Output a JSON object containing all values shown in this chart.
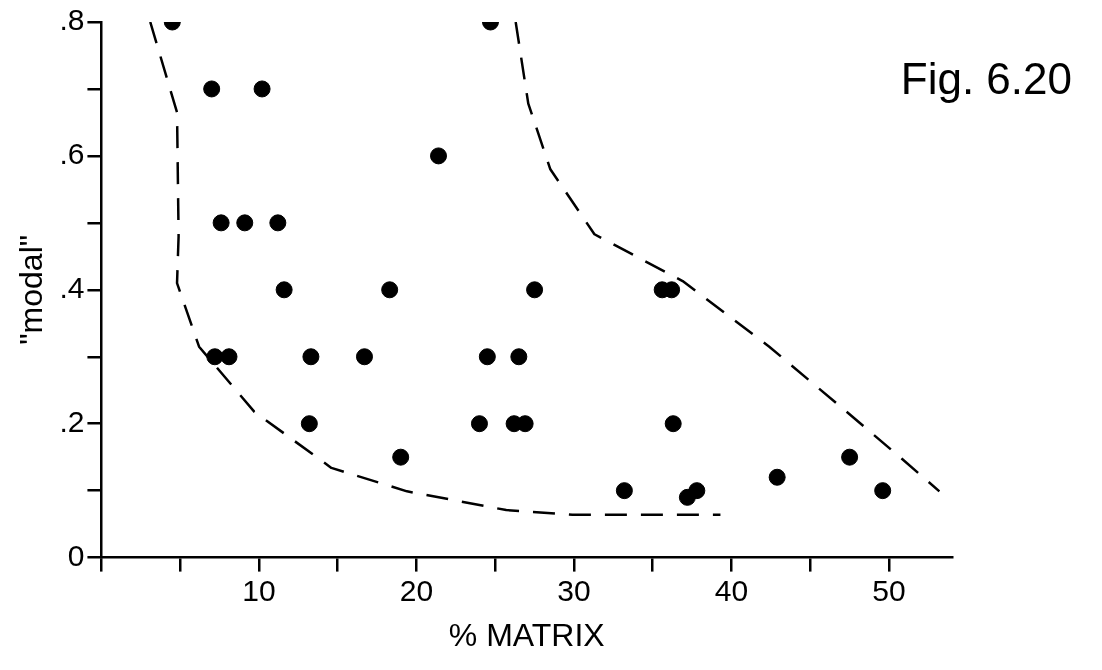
{
  "chart_data": {
    "type": "scatter",
    "xlabel": "% MATRIX",
    "ylabel": "\"modal\"",
    "annotations": [
      "Fig. 6.20"
    ],
    "xlim": [
      0,
      54
    ],
    "ylim": [
      0,
      0.8
    ],
    "xticks": [
      {
        "value": 0,
        "label": null
      },
      {
        "value": 5,
        "label": null
      },
      10,
      {
        "value": 15,
        "label": null
      },
      20,
      {
        "value": 25,
        "label": null
      },
      30,
      {
        "value": 35,
        "label": null
      },
      40,
      {
        "value": 45,
        "label": null
      },
      50
    ],
    "yticks": [
      0,
      {
        "value": 0.1,
        "label": null
      },
      {
        "value": 0.2,
        "label": ".2"
      },
      {
        "value": 0.3,
        "label": null
      },
      {
        "value": 0.4,
        "label": ".4"
      },
      {
        "value": 0.5,
        "label": null
      },
      {
        "value": 0.6,
        "label": ".6"
      },
      {
        "value": 0.7,
        "label": null
      },
      {
        "value": 0.8,
        "label": ".8"
      }
    ],
    "grid": false,
    "legend": false,
    "marker": "circle",
    "series": [
      {
        "type": "scatter",
        "color": "#000000",
        "x": [
          4.5,
          24.7,
          7.0,
          10.2,
          21.4,
          7.6,
          9.1,
          11.2,
          11.6,
          18.3,
          27.5,
          35.6,
          36.2,
          7.2,
          8.1,
          13.3,
          16.7,
          24.5,
          26.5,
          13.2,
          24.0,
          26.2,
          26.9,
          36.3,
          19.0,
          33.2,
          37.8,
          37.2,
          42.9,
          47.5,
          49.6
        ],
        "values": [
          0.8,
          0.8,
          0.7,
          0.7,
          0.6,
          0.5,
          0.5,
          0.5,
          0.4,
          0.4,
          0.4,
          0.4,
          0.4,
          0.3,
          0.3,
          0.3,
          0.3,
          0.3,
          0.3,
          0.2,
          0.2,
          0.2,
          0.2,
          0.2,
          0.15,
          0.1,
          0.1,
          0.09,
          0.12,
          0.15,
          0.1
        ]
      },
      {
        "type": "line",
        "color": "#000000",
        "line_style": "dashed",
        "marker": "none",
        "x": [
          3.1,
          4.8,
          4.9,
          4.8,
          6.2,
          9.7,
          14.6,
          19.4,
          25.7,
          29.9,
          39.3
        ],
        "values": [
          0.8,
          0.665,
          0.48,
          0.41,
          0.315,
          0.218,
          0.134,
          0.099,
          0.071,
          0.064,
          0.064
        ]
      },
      {
        "type": "line",
        "color": "#000000",
        "line_style": "dashed",
        "marker": "none",
        "x": [
          26.3,
          27.1,
          28.5,
          31.3,
          36.9,
          42.4,
          47.3,
          50.8,
          53.2
        ],
        "values": [
          0.8,
          0.678,
          0.58,
          0.483,
          0.413,
          0.315,
          0.218,
          0.148,
          0.099
        ]
      }
    ]
  }
}
